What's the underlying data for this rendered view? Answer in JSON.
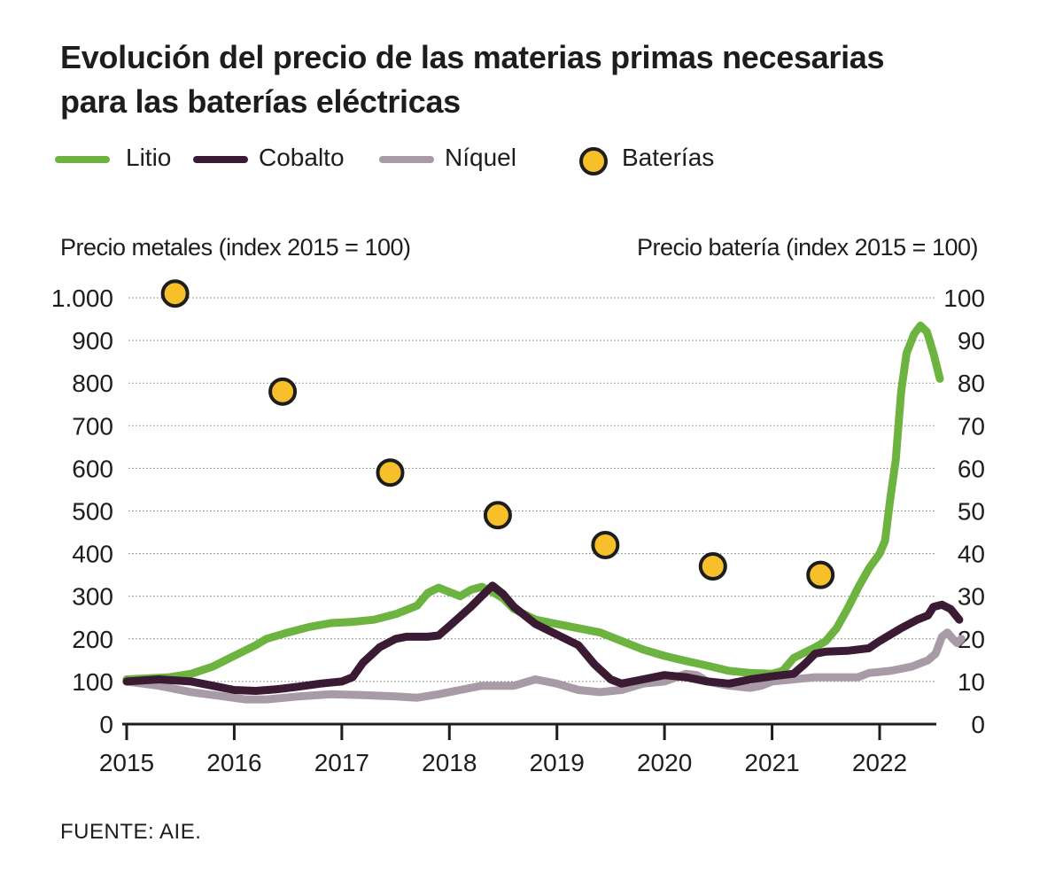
{
  "source": "FUENTE: AIE.",
  "chart_data": {
    "type": "line",
    "title": "Evolución del precio de las materias primas necesarias para las baterías eléctricas",
    "title_lines": [
      "Evolución del precio de las materias primas necesarias",
      "para las baterías eléctricas"
    ],
    "y_left_label": "Precio metales (index 2015 = 100)",
    "y_right_label": "Precio batería (index 2015 = 100)",
    "y_left_range": [
      0,
      1000
    ],
    "y_right_range": [
      0,
      100
    ],
    "y_left_ticks": [
      0,
      100,
      200,
      300,
      400,
      500,
      600,
      700,
      800,
      900,
      1000
    ],
    "y_left_tick_labels": [
      "0",
      "100",
      "200",
      "300",
      "400",
      "500",
      "600",
      "700",
      "800",
      "900",
      "1.000"
    ],
    "y_right_ticks": [
      0,
      10,
      20,
      30,
      40,
      50,
      60,
      70,
      80,
      90,
      100
    ],
    "y_right_tick_labels": [
      "0",
      "10",
      "20",
      "30",
      "40",
      "50",
      "60",
      "70",
      "80",
      "90",
      "100"
    ],
    "x_range": [
      2015,
      2022.75
    ],
    "x_ticks": [
      2015,
      2016,
      2017,
      2018,
      2019,
      2020,
      2021,
      2022
    ],
    "x_tick_labels": [
      "2015",
      "2016",
      "2017",
      "2018",
      "2019",
      "2020",
      "2021",
      "2022"
    ],
    "grid": true,
    "legend_position": "top-left",
    "series": [
      {
        "name": "Litio",
        "axis": "left",
        "color": "#6db33f",
        "points": [
          [
            2015.0,
            105
          ],
          [
            2015.4,
            110
          ],
          [
            2015.6,
            118
          ],
          [
            2015.8,
            135
          ],
          [
            2016.0,
            160
          ],
          [
            2016.2,
            185
          ],
          [
            2016.3,
            200
          ],
          [
            2016.5,
            215
          ],
          [
            2016.7,
            228
          ],
          [
            2016.9,
            237
          ],
          [
            2017.1,
            240
          ],
          [
            2017.3,
            245
          ],
          [
            2017.5,
            258
          ],
          [
            2017.7,
            278
          ],
          [
            2017.8,
            308
          ],
          [
            2017.9,
            320
          ],
          [
            2018.0,
            310
          ],
          [
            2018.1,
            300
          ],
          [
            2018.2,
            315
          ],
          [
            2018.3,
            322
          ],
          [
            2018.4,
            310
          ],
          [
            2018.5,
            295
          ],
          [
            2018.6,
            270
          ],
          [
            2018.8,
            245
          ],
          [
            2019.0,
            235
          ],
          [
            2019.2,
            225
          ],
          [
            2019.4,
            215
          ],
          [
            2019.6,
            195
          ],
          [
            2019.8,
            175
          ],
          [
            2020.0,
            160
          ],
          [
            2020.2,
            148
          ],
          [
            2020.4,
            137
          ],
          [
            2020.6,
            125
          ],
          [
            2020.8,
            120
          ],
          [
            2021.0,
            118
          ],
          [
            2021.1,
            125
          ],
          [
            2021.2,
            155
          ],
          [
            2021.4,
            180
          ],
          [
            2021.5,
            195
          ],
          [
            2021.6,
            225
          ],
          [
            2021.7,
            270
          ],
          [
            2021.8,
            320
          ],
          [
            2021.9,
            365
          ],
          [
            2022.0,
            400
          ],
          [
            2022.05,
            430
          ],
          [
            2022.1,
            530
          ],
          [
            2022.15,
            620
          ],
          [
            2022.2,
            780
          ],
          [
            2022.25,
            870
          ],
          [
            2022.32,
            915
          ],
          [
            2022.38,
            935
          ],
          [
            2022.44,
            920
          ],
          [
            2022.5,
            870
          ],
          [
            2022.56,
            810
          ]
        ]
      },
      {
        "name": "Cobalto",
        "axis": "left",
        "color": "#3b1a33",
        "points": [
          [
            2015.0,
            100
          ],
          [
            2015.3,
            105
          ],
          [
            2015.6,
            100
          ],
          [
            2015.8,
            90
          ],
          [
            2016.0,
            80
          ],
          [
            2016.2,
            78
          ],
          [
            2016.4,
            82
          ],
          [
            2016.6,
            88
          ],
          [
            2016.8,
            95
          ],
          [
            2017.0,
            100
          ],
          [
            2017.1,
            110
          ],
          [
            2017.2,
            145
          ],
          [
            2017.35,
            180
          ],
          [
            2017.5,
            200
          ],
          [
            2017.6,
            205
          ],
          [
            2017.8,
            205
          ],
          [
            2017.9,
            208
          ],
          [
            2018.0,
            230
          ],
          [
            2018.2,
            275
          ],
          [
            2018.3,
            300
          ],
          [
            2018.4,
            325
          ],
          [
            2018.5,
            305
          ],
          [
            2018.6,
            275
          ],
          [
            2018.8,
            235
          ],
          [
            2019.0,
            210
          ],
          [
            2019.2,
            185
          ],
          [
            2019.35,
            140
          ],
          [
            2019.5,
            105
          ],
          [
            2019.6,
            95
          ],
          [
            2019.8,
            105
          ],
          [
            2020.0,
            115
          ],
          [
            2020.2,
            110
          ],
          [
            2020.4,
            100
          ],
          [
            2020.6,
            95
          ],
          [
            2020.8,
            105
          ],
          [
            2021.0,
            112
          ],
          [
            2021.2,
            118
          ],
          [
            2021.3,
            140
          ],
          [
            2021.4,
            165
          ],
          [
            2021.5,
            170
          ],
          [
            2021.7,
            172
          ],
          [
            2021.9,
            178
          ],
          [
            2022.0,
            195
          ],
          [
            2022.2,
            225
          ],
          [
            2022.35,
            245
          ],
          [
            2022.45,
            255
          ],
          [
            2022.5,
            275
          ],
          [
            2022.58,
            280
          ],
          [
            2022.66,
            270
          ],
          [
            2022.74,
            245
          ]
        ]
      },
      {
        "name": "Níquel",
        "axis": "left",
        "color": "#a89aa6",
        "points": [
          [
            2015.0,
            100
          ],
          [
            2015.3,
            90
          ],
          [
            2015.6,
            75
          ],
          [
            2015.9,
            65
          ],
          [
            2016.1,
            58
          ],
          [
            2016.3,
            58
          ],
          [
            2016.6,
            65
          ],
          [
            2016.9,
            70
          ],
          [
            2017.2,
            68
          ],
          [
            2017.5,
            65
          ],
          [
            2017.7,
            62
          ],
          [
            2017.9,
            70
          ],
          [
            2018.1,
            80
          ],
          [
            2018.3,
            90
          ],
          [
            2018.6,
            90
          ],
          [
            2018.8,
            105
          ],
          [
            2019.0,
            95
          ],
          [
            2019.2,
            80
          ],
          [
            2019.4,
            75
          ],
          [
            2019.6,
            80
          ],
          [
            2019.8,
            95
          ],
          [
            2020.0,
            100
          ],
          [
            2020.2,
            118
          ],
          [
            2020.3,
            115
          ],
          [
            2020.4,
            100
          ],
          [
            2020.6,
            90
          ],
          [
            2020.8,
            85
          ],
          [
            2020.9,
            90
          ],
          [
            2021.0,
            100
          ],
          [
            2021.2,
            105
          ],
          [
            2021.4,
            110
          ],
          [
            2021.6,
            110
          ],
          [
            2021.8,
            110
          ],
          [
            2021.9,
            120
          ],
          [
            2022.1,
            125
          ],
          [
            2022.3,
            135
          ],
          [
            2022.45,
            150
          ],
          [
            2022.52,
            165
          ],
          [
            2022.58,
            205
          ],
          [
            2022.63,
            215
          ],
          [
            2022.68,
            200
          ],
          [
            2022.72,
            190
          ],
          [
            2022.76,
            200
          ]
        ]
      }
    ],
    "batteries": {
      "name": "Baterías",
      "axis": "right",
      "color": "#f7bf2a",
      "points": [
        [
          2015.45,
          101
        ],
        [
          2016.45,
          78
        ],
        [
          2017.45,
          59
        ],
        [
          2018.45,
          49
        ],
        [
          2019.45,
          42
        ],
        [
          2020.45,
          37
        ],
        [
          2021.45,
          35
        ]
      ]
    }
  }
}
